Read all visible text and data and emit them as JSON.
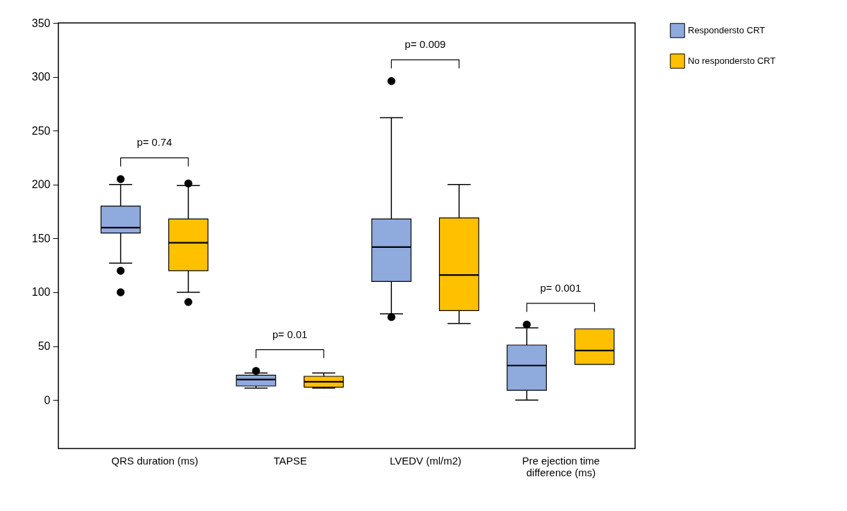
{
  "chart_data": {
    "type": "box",
    "categories": [
      "QRS duration (ms)",
      "TAPSE",
      "LVEDV (ml/m2)",
      "Pre ejection time difference (ms)"
    ],
    "series": [
      {
        "name": "Respondersto CRT",
        "color": "#8faadc",
        "boxes": [
          {
            "low": 127,
            "q1": 155,
            "median": 160,
            "q3": 180,
            "high": 200,
            "outliers": [
              205,
              120,
              100
            ]
          },
          {
            "low": 11,
            "q1": 13,
            "median": 19,
            "q3": 23,
            "high": 25,
            "outliers": [
              27
            ]
          },
          {
            "low": 80,
            "q1": 110,
            "median": 142,
            "q3": 168,
            "high": 262,
            "outliers": [
              296,
              77
            ]
          },
          {
            "low": 0,
            "q1": 9,
            "median": 32,
            "q3": 51,
            "high": 67,
            "outliers": [
              70
            ]
          }
        ]
      },
      {
        "name": "No respondersto CRT",
        "color": "#ffc000",
        "boxes": [
          {
            "low": 100,
            "q1": 120,
            "median": 146,
            "q3": 168,
            "high": 199,
            "outliers": [
              201,
              91
            ]
          },
          {
            "low": 11,
            "q1": 12,
            "median": 17,
            "q3": 22,
            "high": 25
          },
          {
            "low": 71,
            "q1": 83,
            "median": 116,
            "q3": 169,
            "high": 200
          },
          {
            "low": 33,
            "q1": 33,
            "median": 46,
            "q3": 66,
            "high": 66
          }
        ]
      }
    ],
    "ylim": [
      -45,
      350
    ],
    "yticks": [
      0,
      50,
      100,
      150,
      200,
      250,
      300,
      350
    ],
    "legend": "right",
    "annotations": [
      "p= 0.74",
      "p= 0.01",
      "p= 0.009",
      "p= 0.001"
    ]
  }
}
